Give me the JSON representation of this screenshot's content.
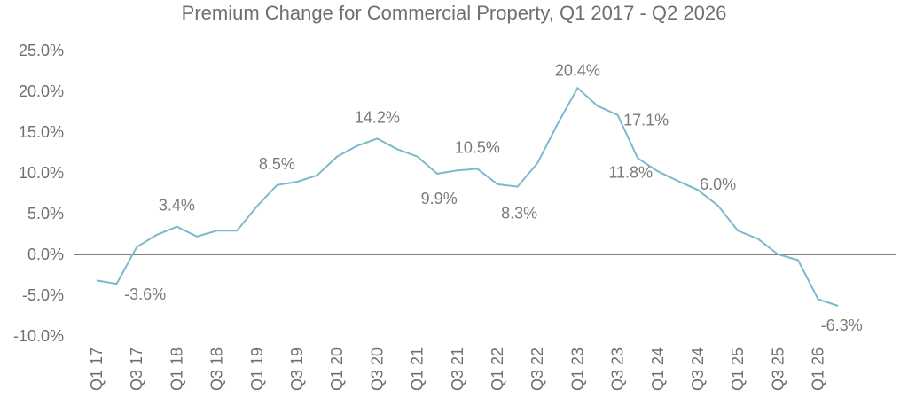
{
  "chart_data": {
    "type": "line",
    "title": "Premium Change for Commercial Property, Q1 2017 - Q2 2026",
    "xlabel": "",
    "ylabel": "",
    "ylim": [
      -10,
      25
    ],
    "yticks": [
      "25.0%",
      "20.0%",
      "15.0%",
      "10.0%",
      "5.0%",
      "0.0%",
      "-5.0%",
      "-10.0%"
    ],
    "ytick_values": [
      25,
      20,
      15,
      10,
      5,
      0,
      -5,
      -10
    ],
    "x": [
      "Q1 17",
      "Q2 17",
      "Q3 17",
      "Q4 17",
      "Q1 18",
      "Q2 18",
      "Q3 18",
      "Q4 18",
      "Q1 19",
      "Q2 19",
      "Q3 19",
      "Q4 19",
      "Q1 20",
      "Q2 20",
      "Q3 20",
      "Q4 20",
      "Q1 21",
      "Q2 21",
      "Q3 21",
      "Q4 21",
      "Q1 22",
      "Q2 22",
      "Q3 22",
      "Q4 22",
      "Q1 23",
      "Q2 23",
      "Q3 23",
      "Q4 23",
      "Q1 24",
      "Q2 24",
      "Q3 24",
      "Q4 24",
      "Q1 25",
      "Q2 25",
      "Q3 25",
      "Q4 25",
      "Q1 26",
      "Q2 26"
    ],
    "x_tick_labels": [
      "Q1 17",
      "Q3 17",
      "Q1 18",
      "Q3 18",
      "Q1 19",
      "Q3 19",
      "Q1 20",
      "Q3 20",
      "Q1 21",
      "Q3 21",
      "Q1 22",
      "Q3 22",
      "Q1 23",
      "Q3 23",
      "Q1 24",
      "Q3 24",
      "Q1 25",
      "Q3 25",
      "Q1 26"
    ],
    "series": [
      {
        "values": [
          -3.2,
          -3.6,
          0.9,
          2.4,
          3.4,
          2.2,
          2.9,
          2.9,
          5.9,
          8.5,
          8.9,
          9.7,
          12.0,
          13.3,
          14.2,
          12.9,
          12.0,
          9.9,
          10.3,
          10.5,
          8.6,
          8.3,
          11.2,
          16.0,
          20.4,
          18.2,
          17.1,
          11.8,
          10.2,
          9.0,
          7.9,
          6.0,
          2.9,
          1.9,
          0.0,
          -0.7,
          -5.5,
          -6.3
        ],
        "color": "#7cb9cc"
      }
    ],
    "zero_line_color": "#7f7f7f",
    "data_labels": [
      {
        "index": 1,
        "text": "-3.6%"
      },
      {
        "index": 4,
        "text": "3.4%"
      },
      {
        "index": 9,
        "text": "8.5%"
      },
      {
        "index": 14,
        "text": "14.2%"
      },
      {
        "index": 17,
        "text": "9.9%"
      },
      {
        "index": 19,
        "text": "10.5%"
      },
      {
        "index": 21,
        "text": "8.3%"
      },
      {
        "index": 24,
        "text": "20.4%"
      },
      {
        "index": 26,
        "text": "17.1%"
      },
      {
        "index": 27,
        "text": "11.8%"
      },
      {
        "index": 31,
        "text": "6.0%"
      },
      {
        "index": 37,
        "text": "-6.3%"
      }
    ],
    "grid": false,
    "legend": "none"
  }
}
